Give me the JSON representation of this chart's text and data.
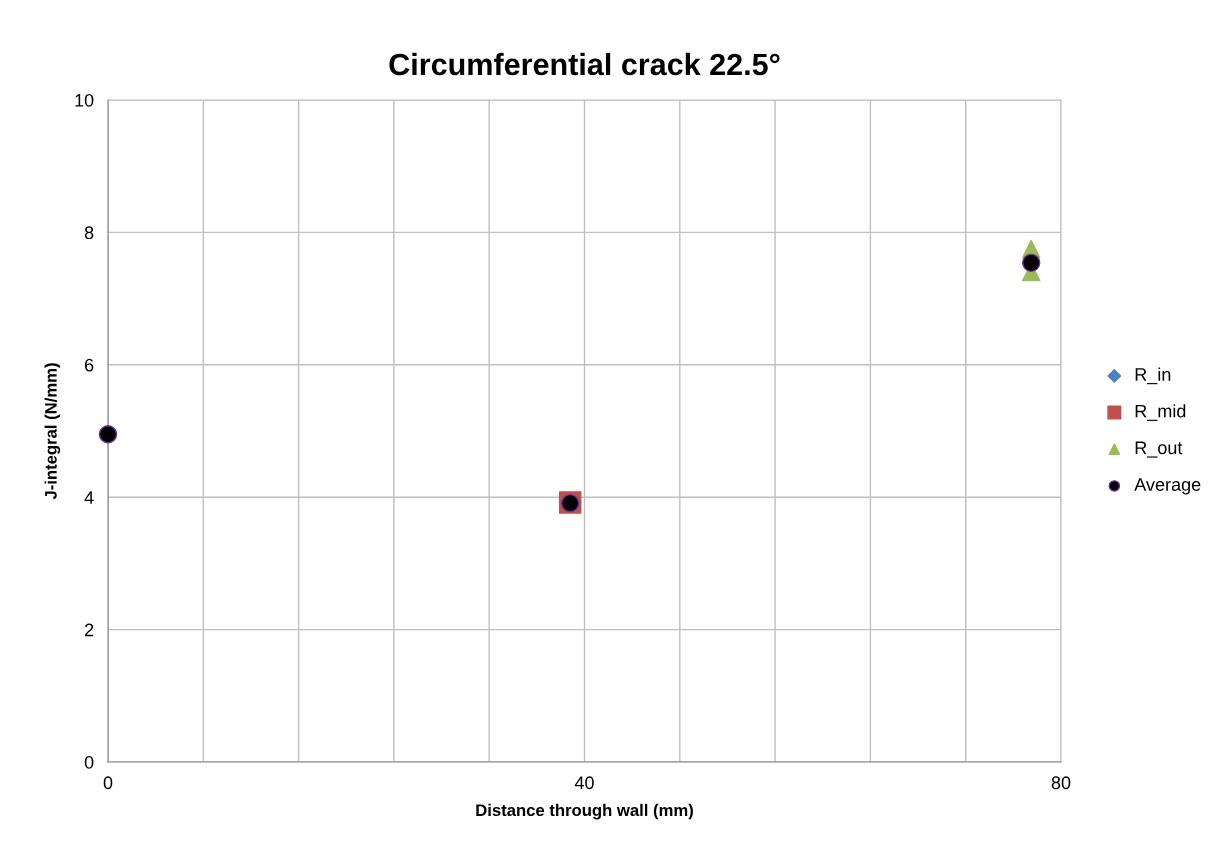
{
  "chart_data": {
    "type": "scatter",
    "title": "Circumferential crack 22.5°",
    "xlabel": "Distance through wall (mm)",
    "ylabel": "J-integral (N/mm)",
    "series": [
      {
        "name": "R_in",
        "color": "#4f81bd",
        "marker": "diamond"
      },
      {
        "name": "R_mid",
        "color": "#c0504d",
        "marker": "square",
        "x": [
          38.8
        ],
        "values": [
          3.92
        ]
      },
      {
        "name": "R_out",
        "color": "#9bbb59",
        "marker": "triangle",
        "x": [
          77.5,
          77.5
        ],
        "values": [
          7.75,
          7.4
        ]
      },
      {
        "name": "Average",
        "color": "#000000",
        "marker": "circle",
        "x": [
          0,
          38.8,
          77.5
        ],
        "values": [
          4.95,
          3.91,
          7.54
        ]
      }
    ],
    "xlim": [
      0,
      80
    ],
    "ylim": [
      0,
      10
    ],
    "xticks": [
      0,
      {
        "value": 8,
        "label": null
      },
      {
        "value": 16,
        "label": null
      },
      {
        "value": 24,
        "label": null
      },
      {
        "value": 32,
        "label": null
      },
      40,
      {
        "value": 48,
        "label": null
      },
      {
        "value": 56,
        "label": null
      },
      {
        "value": 64,
        "label": null
      },
      {
        "value": 72,
        "label": null
      },
      80
    ],
    "yticks": [
      0,
      2,
      4,
      6,
      8,
      10
    ],
    "grid": true,
    "legend": "right"
  }
}
